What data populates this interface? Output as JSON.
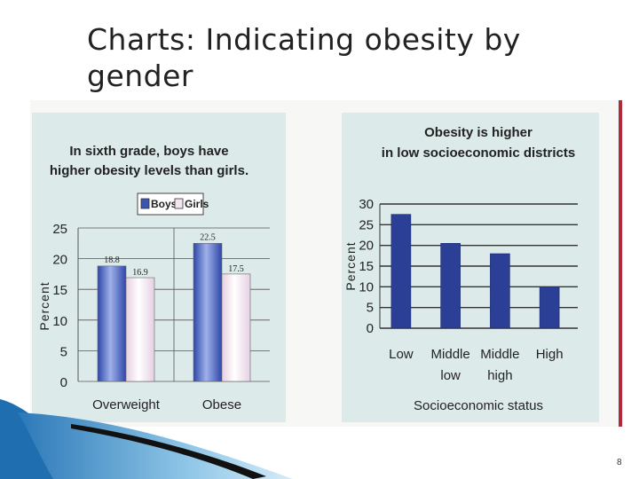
{
  "slide": {
    "title": "Charts: Indicating obesity by gender",
    "page_number": "8"
  },
  "chart_data": [
    {
      "type": "bar",
      "title": "In sixth grade, boys have higher obesity levels than girls.",
      "title_lines": [
        "In sixth grade, boys have",
        "higher obesity levels than girls."
      ],
      "categories": [
        "Overweight",
        "Obese"
      ],
      "series": [
        {
          "name": "Boys",
          "values": [
            18.8,
            22.5
          ],
          "color": "#3b55b0"
        },
        {
          "name": "Girls",
          "values": [
            16.9,
            17.5
          ],
          "color": "#f2e6f0"
        }
      ],
      "data_labels": [
        "18.8",
        "16.9",
        "22.5",
        "17.5"
      ],
      "ylabel": "Percent",
      "xlabel": "",
      "ylim": [
        0,
        25
      ],
      "yticks": [
        "0",
        "5",
        "10",
        "15",
        "20",
        "25"
      ],
      "grid": true,
      "legend": "top"
    },
    {
      "type": "bar",
      "title": "Obesity is higher in low socioeconomic districts",
      "title_lines": [
        "Obesity is higher",
        "in low socioeconomic districts"
      ],
      "categories": [
        "Low",
        "Middle low",
        "Middle high",
        "High"
      ],
      "category_lines": [
        [
          "Low"
        ],
        [
          "Middle",
          "low"
        ],
        [
          "Middle",
          "high"
        ],
        [
          "High"
        ]
      ],
      "series": [
        {
          "values": [
            27.5,
            20.5,
            18,
            10
          ],
          "color": "#2c3f96"
        }
      ],
      "ylabel": "Percent",
      "xlabel": "Socioeconomic status",
      "ylim": [
        0,
        30
      ],
      "yticks": [
        "0",
        "5",
        "10",
        "15",
        "20",
        "25",
        "30"
      ],
      "grid": true
    }
  ]
}
